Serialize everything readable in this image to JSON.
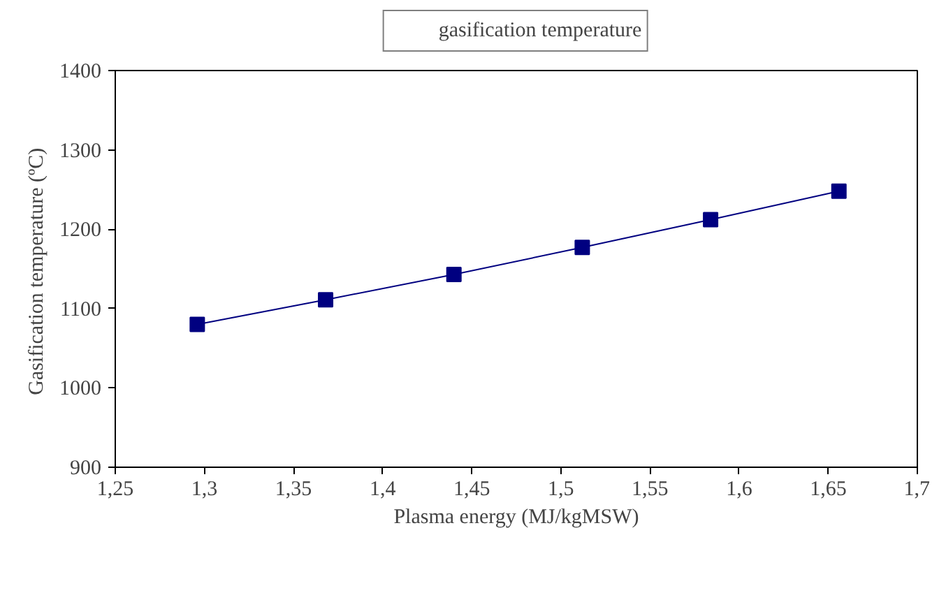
{
  "chart_data": {
    "type": "line",
    "xlabel": "Plasma energy (MJ/kgMSW)",
    "ylabel": "Gasification temperature  (ºC)",
    "x": [
      1.296,
      1.368,
      1.44,
      1.512,
      1.584,
      1.656
    ],
    "series": [
      {
        "name": "gasification temperature",
        "color": "#000080",
        "values": [
          1080,
          1111,
          1143,
          1177,
          1212,
          1248
        ]
      }
    ],
    "xlim": [
      1.25,
      1.7
    ],
    "xticks": [
      {
        "value": 1.25,
        "label": "1,25"
      },
      {
        "value": 1.3,
        "label": "1,3"
      },
      {
        "value": 1.35,
        "label": "1,35"
      },
      {
        "value": 1.4,
        "label": "1,4"
      },
      {
        "value": 1.45,
        "label": "1,45"
      },
      {
        "value": 1.5,
        "label": "1,5"
      },
      {
        "value": 1.55,
        "label": "1,55"
      },
      {
        "value": 1.6,
        "label": "1,6"
      },
      {
        "value": 1.65,
        "label": "1,65"
      },
      {
        "value": 1.7,
        "label": "1,7"
      }
    ],
    "ylim": [
      900,
      1400
    ],
    "yticks": [
      900,
      1000,
      1100,
      1200,
      1300,
      1400
    ],
    "grid": false,
    "legend": "top",
    "marker": "square",
    "line_style": "solid"
  }
}
